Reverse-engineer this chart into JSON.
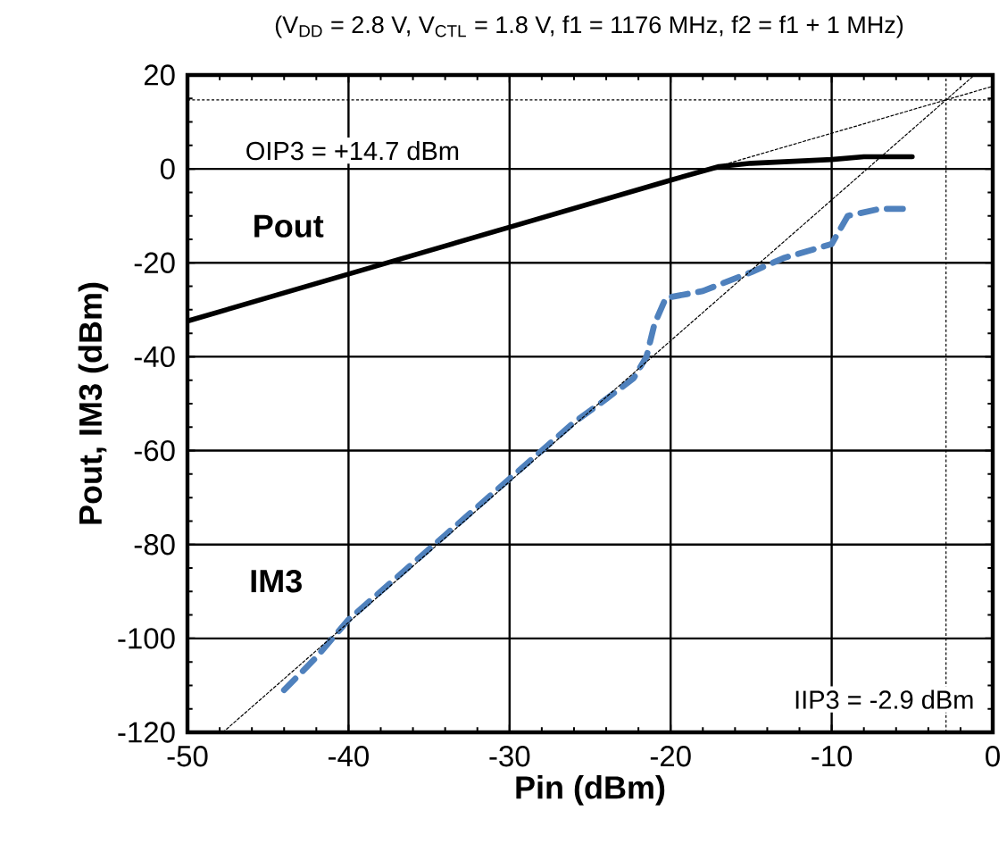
{
  "chart_data": {
    "type": "line",
    "title": "(V$_{DD}$ = 2.8 V, V$_{CTL}$ = 1.8 V, f1 = 1176 MHz, f2 = f1 + 1 MHz)",
    "xlabel": "Pin (dBm)",
    "ylabel": "Pout, IM3 (dBm)",
    "xlim": [
      -50,
      0
    ],
    "ylim": [
      -120,
      20
    ],
    "xticks": [
      -50,
      -40,
      -30,
      -20,
      -10,
      0
    ],
    "yticks": [
      -120,
      -100,
      -80,
      -60,
      -40,
      -20,
      0,
      20
    ],
    "grid": true,
    "series": [
      {
        "name": "Pout",
        "color": "#000000",
        "line_style": "solid",
        "x": [
          -50,
          -40,
          -30,
          -20,
          -17,
          -15,
          -10,
          -8,
          -5
        ],
        "values": [
          -32.4,
          -22.4,
          -12.4,
          -2.4,
          0.5,
          1.2,
          2,
          2.6,
          2.6
        ]
      },
      {
        "name": "IM3",
        "color": "#4f81bd",
        "line_style": "dashed",
        "x": [
          -44,
          -42,
          -40,
          -38,
          -36,
          -34,
          -32,
          -30,
          -28,
          -26,
          -24,
          -22.3,
          -21.5,
          -21,
          -20.3,
          -18,
          -15,
          -13,
          -11,
          -10,
          -9,
          -7,
          -5
        ],
        "values": [
          -111,
          -104,
          -96,
          -90,
          -84,
          -78,
          -72,
          -66,
          -60,
          -54,
          -49,
          -44.6,
          -40,
          -33,
          -27.5,
          -26,
          -22,
          -19,
          -17,
          -16,
          -10,
          -8.5,
          -8.5
        ]
      },
      {
        "color": "#000000",
        "line_style": "dotted",
        "x": [
          -50,
          0
        ],
        "values": [
          -32.4,
          17.6
        ]
      },
      {
        "color": "#000000",
        "line_style": "dotted",
        "x": [
          -47.8,
          -1.2
        ],
        "values": [
          -120,
          19.8
        ]
      }
    ],
    "ref_lines": [
      {
        "axis": "y",
        "value": 14.7,
        "label": "OIP3 = +14.7 dBm",
        "color": "#000000",
        "line_style": "dotted"
      },
      {
        "axis": "x",
        "value": -2.9,
        "label": "IIP3 = -2.9 dBm",
        "color": "#000000",
        "line_style": "dotted"
      }
    ]
  }
}
